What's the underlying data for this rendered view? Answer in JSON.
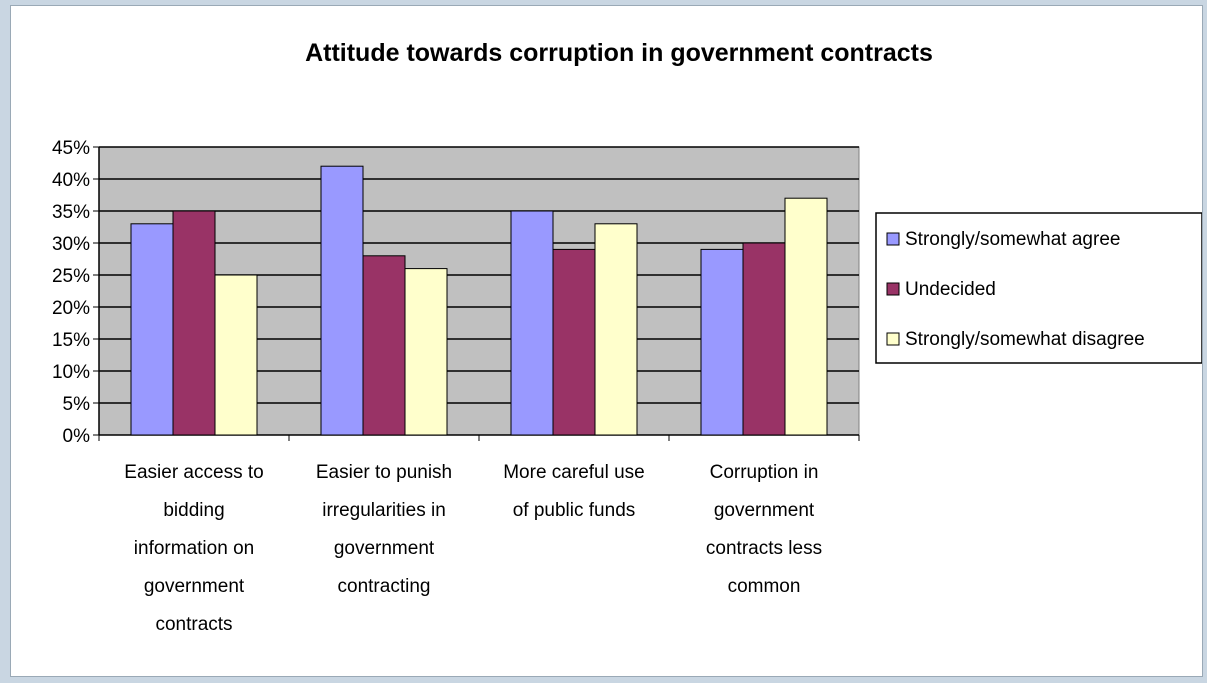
{
  "chart_data": {
    "type": "bar",
    "title": "Attitude towards corruption in government contracts",
    "categories": [
      [
        "Easier access to",
        "bidding",
        "information on",
        "government",
        "contracts"
      ],
      [
        "Easier to punish",
        "irregularities in",
        "government",
        "contracting"
      ],
      [
        "More careful use",
        "of public funds"
      ],
      [
        "Corruption in",
        "government",
        "contracts less",
        "common"
      ]
    ],
    "series": [
      {
        "name": "Strongly/somewhat agree",
        "color": "#9999ff",
        "values": [
          33,
          42,
          35,
          29
        ]
      },
      {
        "name": "Undecided",
        "color": "#993366",
        "values": [
          35,
          28,
          29,
          30
        ]
      },
      {
        "name": "Strongly/somewhat disagree",
        "color": "#ffffcc",
        "values": [
          25,
          26,
          33,
          37
        ]
      }
    ],
    "ylim": [
      0,
      45
    ],
    "yticks": [
      "0%",
      "5%",
      "10%",
      "15%",
      "20%",
      "25%",
      "30%",
      "35%",
      "40%",
      "45%"
    ],
    "grid": true,
    "plot_background": "#c0c0c0",
    "legend_position": "right"
  }
}
